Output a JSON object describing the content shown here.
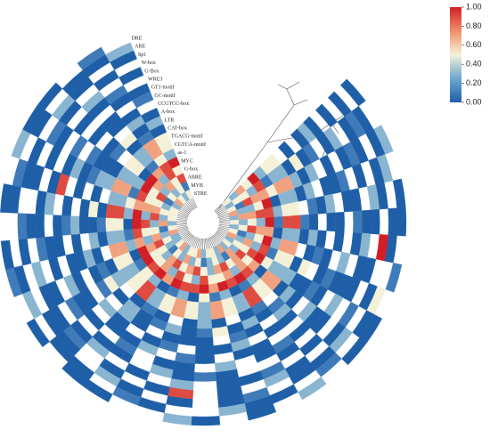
{
  "chart_data": {
    "type": "circular-heatmap",
    "rows": [
      "DRE",
      "ARE",
      "Sp1",
      "W-box",
      "G-Box",
      "WRE3",
      "GT1-motif",
      "GC-motif",
      "CCGTCC-box",
      "A-box",
      "LTR",
      "CAT-box",
      "TGACG-motif",
      "CGTCA-motif",
      "as-1",
      "MYC",
      "G-box",
      "ABRE",
      "MYB",
      "STRE"
    ],
    "matrix": [
      [
        0,
        null,
        0.3,
        null,
        0,
        0,
        null,
        0.1,
        null,
        0,
        0,
        null,
        0.3,
        null,
        0,
        null,
        0,
        0.3,
        null,
        null,
        0,
        0,
        null,
        0,
        null,
        0.1,
        0,
        null,
        0,
        null,
        0.3,
        0,
        0,
        null,
        0.1,
        null
      ],
      [
        null,
        0,
        0,
        0.3,
        null,
        0,
        0,
        null,
        0.5,
        0,
        null,
        0.1,
        null,
        0,
        0,
        0.3,
        null,
        null,
        0,
        0.1,
        null,
        0,
        0,
        null,
        0.3,
        0,
        null,
        null,
        0,
        0.1,
        null,
        0,
        null,
        0,
        0,
        0.3
      ],
      [
        0,
        0.1,
        null,
        0,
        0,
        null,
        1,
        null,
        0,
        null,
        0.3,
        0,
        0,
        null,
        0.1,
        0,
        null,
        0,
        null,
        0,
        0.3,
        null,
        0,
        0,
        null,
        null,
        0,
        0.1,
        null,
        0,
        0,
        null,
        0.3,
        0,
        null,
        0
      ],
      [
        null,
        0,
        0,
        null,
        0.3,
        0,
        null,
        0,
        null,
        0.1,
        0,
        null,
        0,
        0.3,
        null,
        0,
        null,
        0.9,
        0,
        null,
        0,
        null,
        0.1,
        0,
        0,
        0.3,
        null,
        0,
        null,
        0,
        null,
        0.1,
        0,
        null,
        0,
        null
      ],
      [
        0,
        null,
        0.1,
        0,
        null,
        0,
        0.3,
        0,
        0,
        null,
        null,
        0,
        null,
        0.1,
        0,
        0,
        null,
        0.3,
        null,
        0,
        null,
        0.3,
        0,
        null,
        0,
        null,
        0.1,
        0,
        0,
        null,
        0,
        0,
        null,
        0.3,
        null,
        0
      ],
      [
        null,
        0.3,
        0,
        null,
        0,
        0.1,
        0,
        null,
        0,
        0.3,
        0,
        null,
        0,
        null,
        null,
        0,
        0.1,
        0,
        0.3,
        null,
        0,
        0,
        null,
        0.1,
        null,
        0,
        0,
        null,
        0.3,
        0,
        null,
        null,
        0,
        0,
        0.1,
        null
      ],
      [
        0,
        0,
        null,
        0.1,
        0,
        null,
        null,
        0.3,
        0,
        null,
        0,
        0,
        0.1,
        0,
        null,
        0.3,
        null,
        0,
        0,
        null,
        0.1,
        null,
        0,
        0,
        0.3,
        null,
        0,
        0,
        null,
        0.9,
        0,
        0.1,
        null,
        null,
        0,
        0
      ],
      [
        0.3,
        null,
        0,
        0,
        null,
        0,
        0,
        null,
        0.1,
        0,
        0.3,
        null,
        null,
        0,
        0,
        null,
        0,
        0.1,
        null,
        0.3,
        0,
        0,
        null,
        0,
        0,
        0,
        null,
        0.1,
        0,
        null,
        0.3,
        null,
        0,
        0,
        null,
        0.1
      ],
      [
        0,
        0.1,
        null,
        0,
        0.3,
        0,
        null,
        0,
        0,
        0.1,
        null,
        0,
        0,
        null,
        0.3,
        0,
        0,
        null,
        0.1,
        0,
        null,
        0,
        0.3,
        null,
        null,
        0,
        0,
        0.3,
        null,
        0,
        0,
        0.1,
        null,
        0,
        0,
        null
      ],
      [
        null,
        0,
        0.3,
        null,
        0,
        null,
        0,
        0.1,
        null,
        0,
        0,
        0.3,
        null,
        0,
        0.1,
        null,
        0,
        0,
        0,
        null,
        0,
        0.3,
        null,
        0.1,
        0,
        0.3,
        null,
        0,
        0,
        null,
        0.1,
        0,
        0,
        null,
        0.3,
        0
      ],
      [
        0,
        0.5,
        0,
        0.3,
        0.1,
        0,
        0.3,
        0,
        0.5,
        0,
        0.3,
        0.1,
        0,
        0.3,
        0,
        0.5,
        0.1,
        0,
        0.3,
        0.1,
        0,
        0.3,
        0,
        0.5,
        0.1,
        0,
        0.3,
        0,
        0.5,
        0,
        0.3,
        0,
        0.1,
        0.5,
        0,
        0.3
      ],
      [
        null,
        0,
        0.3,
        0,
        null,
        0.1,
        0,
        null,
        0,
        0.3,
        0,
        null,
        0.1,
        0,
        null,
        0,
        0.3,
        0,
        null,
        0,
        0.1,
        0,
        null,
        0.3,
        0,
        null,
        0,
        0.1,
        0,
        null,
        0.3,
        0,
        null,
        0,
        0.1,
        0
      ],
      [
        0.5,
        0.3,
        0.7,
        0.3,
        0.5,
        0.9,
        0.3,
        0.7,
        0.5,
        0.3,
        0.7,
        0.5,
        0.9,
        0.3,
        0.5,
        0.7,
        0.3,
        0.5,
        0.7,
        0.5,
        0.3,
        0.9,
        0.5,
        0.3,
        0.5,
        0.7,
        0.3,
        0.5,
        0.9,
        0.3,
        0.7,
        0.3,
        0.5,
        0.3,
        0.7,
        0.5
      ],
      [
        0.5,
        0.3,
        0.7,
        0.3,
        0.5,
        0.9,
        0.3,
        0.7,
        0.5,
        0.3,
        0.7,
        0.5,
        0.9,
        0.3,
        0.5,
        0.7,
        0.3,
        0.5,
        0.7,
        0.5,
        0.3,
        0.9,
        0.5,
        0.3,
        0.5,
        0.7,
        0.3,
        0.5,
        0.9,
        0.3,
        0.7,
        0.3,
        0.5,
        0.3,
        0.7,
        0.5
      ],
      [
        0.3,
        0.1,
        0.5,
        0,
        0.3,
        0.1,
        0,
        0.3,
        0.1,
        0.5,
        0,
        0.3,
        0.1,
        0,
        0.3,
        0.1,
        0.5,
        0,
        0.3,
        0.1,
        0,
        0.3,
        0.5,
        0.1,
        0,
        0.3,
        0.1,
        0,
        0.3,
        0.5,
        0.1,
        0.3,
        0,
        0.1,
        0.5,
        0.3
      ],
      [
        1,
        0.9,
        0.7,
        1,
        0.9,
        1,
        0.7,
        1,
        0.9,
        1,
        0.7,
        0.9,
        1,
        0.9,
        1,
        0.7,
        1,
        0.9,
        0.9,
        1,
        0.7,
        1,
        0.9,
        1,
        1,
        0.7,
        0.9,
        1,
        1,
        0.7,
        0.9,
        1,
        1,
        0.7,
        0.9,
        1
      ],
      [
        0.5,
        0.3,
        0.7,
        0.5,
        0.9,
        0.3,
        0.7,
        0.5,
        0.3,
        0.9,
        0.5,
        0.7,
        0.3,
        0.7,
        0.5,
        0.5,
        0.9,
        0.3,
        0.5,
        0.9,
        0.3,
        0.7,
        0.5,
        0.5,
        0.7,
        0.3,
        0.5,
        0.9,
        0.3,
        0.7,
        0.5,
        0.5,
        0.7,
        0.3,
        0.9,
        0.5
      ],
      [
        0.7,
        0.5,
        0.9,
        0.3,
        0.7,
        0.5,
        0.9,
        0.3,
        0.7,
        0.5,
        0.9,
        0.7,
        0.5,
        0.9,
        0.7,
        0.3,
        0.5,
        0.9,
        0.7,
        0.5,
        0.9,
        0.7,
        0.3,
        0.5,
        0.9,
        0.7,
        0.5,
        0.3,
        0.9,
        0.7,
        0.5,
        0.9,
        0.3,
        0.7,
        0.5,
        0.9
      ],
      [
        0.3,
        0.5,
        0.1,
        0.3,
        0.7,
        0.3,
        0.5,
        0.1,
        0.3,
        0.5,
        0.3,
        0.7,
        0.1,
        0.3,
        0.5,
        0.3,
        0.1,
        0.5,
        0.3,
        0.7,
        0.3,
        0.5,
        0.1,
        0.3,
        0.5,
        0.3,
        0.1,
        0.7,
        0.3,
        0.5,
        0.3,
        0.1,
        0.5,
        0.3,
        0.5,
        0.1
      ],
      [
        0.5,
        0.3,
        0.5,
        0.7,
        0.3,
        0.5,
        0.3,
        0.5,
        0.7,
        0.3,
        0.5,
        0.3,
        0.7,
        0.3,
        0.5,
        0.5,
        0.3,
        0.7,
        0.5,
        0.5,
        0.3,
        0.7,
        0.5,
        0.3,
        0.3,
        0.7,
        0.5,
        0.3,
        0.5,
        0.5,
        0.5,
        0.3,
        0.7,
        0.5,
        0.3,
        0.5
      ]
    ],
    "zlim": [
      0,
      1
    ],
    "colorscale": [
      "#1f5fa8",
      "#6ea6cf",
      "#f4f1d8",
      "#ef8e6a",
      "#d21f26"
    ],
    "colorbar_ticks": [
      {
        "value": 0,
        "label": "0.00"
      },
      {
        "value": 0.2,
        "label": "0.20"
      },
      {
        "value": 0.4,
        "label": "0.40"
      },
      {
        "value": 0.6,
        "label": "0.60"
      },
      {
        "value": 0.8,
        "label": "0.80"
      },
      {
        "value": 1,
        "label": "1.00"
      }
    ]
  }
}
